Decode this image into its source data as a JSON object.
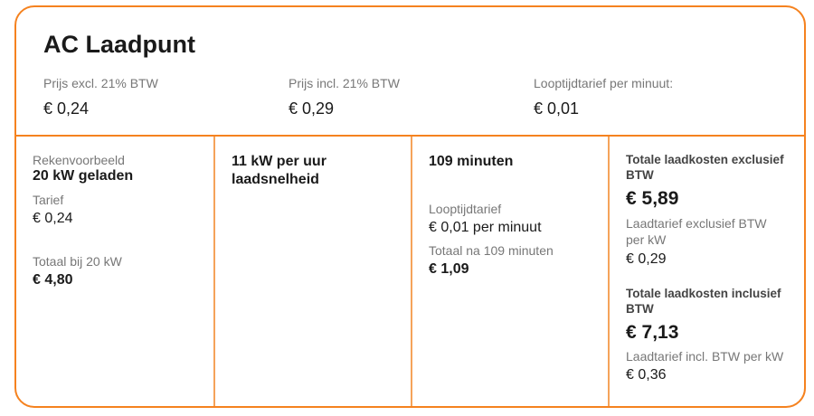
{
  "title": "AC Laadpunt",
  "accent": "#f5821f",
  "header": [
    {
      "label": "Prijs excl. 21% BTW",
      "value": "€ 0,24"
    },
    {
      "label": "Prijs incl. 21% BTW",
      "value": "€ 0,29"
    },
    {
      "label": "Looptijdtarief per minuut:",
      "value": "€ 0,01"
    }
  ],
  "col1": {
    "label": "Rekenvoorbeeld",
    "heading": "20 kW geladen",
    "tariff_label": "Tarief",
    "tariff_value": "€ 0,24",
    "total_label": "Totaal bij 20 kW",
    "total_value": "€ 4,80"
  },
  "col2": {
    "heading": "11 kW per uur laadsnelheid"
  },
  "col3": {
    "heading": "109 minuten",
    "rate_label": "Looptijdtarief",
    "rate_value": "€ 0,01 per minuut",
    "total_label": "Totaal na 109 minuten",
    "total_value": "€ 1,09"
  },
  "col4": {
    "excl_heading": "Totale laadkosten exclusief BTW",
    "excl_total": "€ 5,89",
    "excl_rate_label": "Laadtarief exclusief BTW per kW",
    "excl_rate_value": "€ 0,29",
    "incl_heading": "Totale laadkosten inclusief BTW",
    "incl_total": "€ 7,13",
    "incl_rate_label": "Laadtarief incl. BTW per kW",
    "incl_rate_value": "€ 0,36"
  }
}
